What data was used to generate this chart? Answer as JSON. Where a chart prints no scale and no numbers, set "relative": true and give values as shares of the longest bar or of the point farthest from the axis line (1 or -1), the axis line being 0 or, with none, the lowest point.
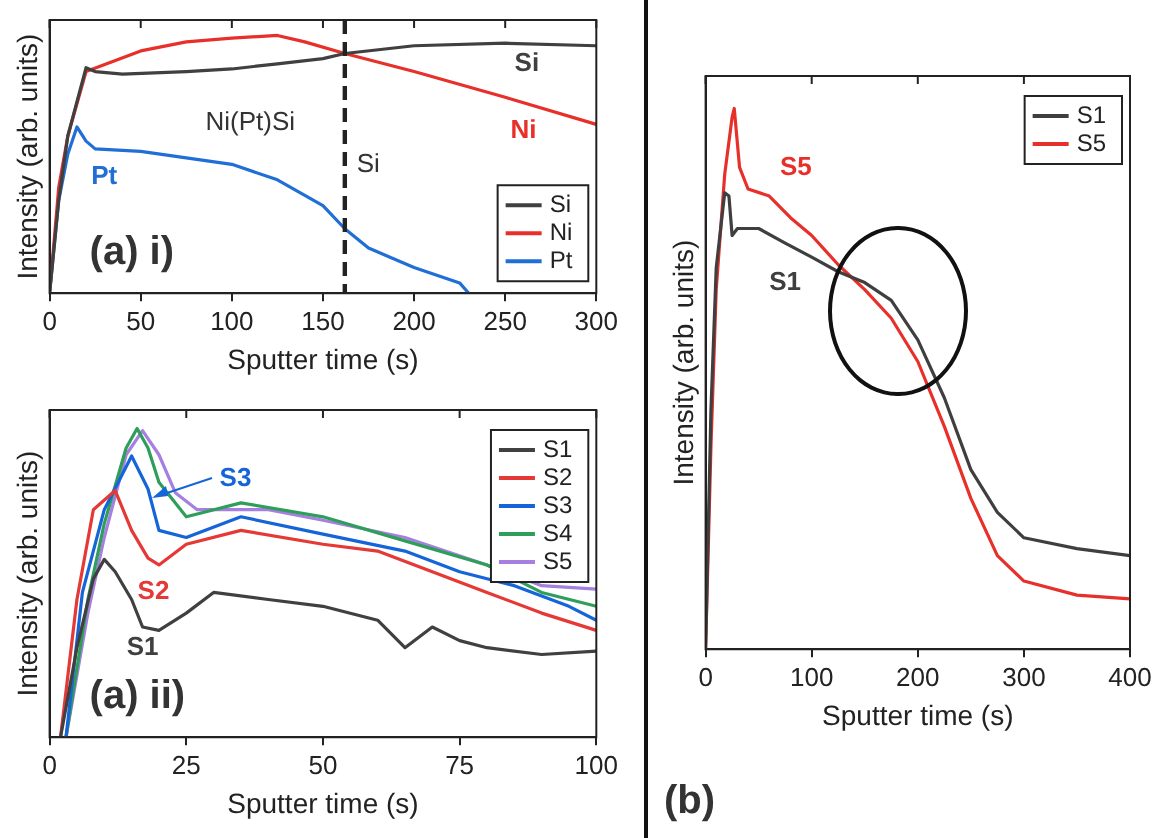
{
  "chart_data": [
    {
      "type": "line",
      "relative": true,
      "xlabel": "Sputter time (s)",
      "ylabel": "Intensity (arb. units)",
      "xlim": [
        0,
        300
      ],
      "xticks": [
        0,
        50,
        100,
        150,
        200,
        250,
        300
      ],
      "tick_labels": "x",
      "legend": "bottom right",
      "marker": "none",
      "series": [
        {
          "name": "Si",
          "color": "#404040",
          "x": [
            0,
            5,
            10,
            20,
            25,
            40,
            75,
            100,
            125,
            150,
            162,
            200,
            250,
            300
          ],
          "values": [
            0,
            0.36,
            0.61,
            0.875,
            0.86,
            0.85,
            0.86,
            0.87,
            0.89,
            0.91,
            0.93,
            0.96,
            0.97,
            0.96
          ]
        },
        {
          "name": "Ni",
          "color": "#e8302a",
          "x": [
            0,
            5,
            10,
            20,
            50,
            75,
            100,
            125,
            140,
            162,
            200,
            250,
            300
          ],
          "values": [
            0,
            0.41,
            0.61,
            0.86,
            0.94,
            0.975,
            0.99,
            1,
            0.975,
            0.93,
            0.86,
            0.76,
            0.655
          ]
        },
        {
          "name": "Pt",
          "color": "#1f6fd6",
          "x": [
            0,
            5,
            10,
            15,
            20,
            25,
            50,
            75,
            100,
            125,
            150,
            162,
            175,
            200,
            225,
            230
          ],
          "values": [
            0,
            0.36,
            0.54,
            0.645,
            0.59,
            0.56,
            0.55,
            0.525,
            0.5,
            0.44,
            0.34,
            0.25,
            0.175,
            0.1,
            0.04,
            0
          ]
        }
      ],
      "ref_lines": [
        {
          "axis": "x",
          "value": 162,
          "color": "#222222",
          "line_style": "dashed"
        }
      ],
      "annotations": [
        "Ni(Pt)Si",
        "Si",
        "Si",
        "Ni",
        "Pt",
        "(a) i)"
      ]
    },
    {
      "type": "line",
      "relative": true,
      "xlabel": "Sputter time (s)",
      "ylabel": "Intensity (arb. units)",
      "xlim": [
        0,
        100
      ],
      "xticks": [
        0,
        25,
        50,
        75,
        100
      ],
      "tick_labels": "x",
      "legend": "top right",
      "marker": "none",
      "series": [
        {
          "name": "S1",
          "color": "#404040",
          "x": [
            2,
            5,
            8,
            10,
            12,
            15,
            17,
            20,
            25,
            30,
            40,
            50,
            60,
            65,
            70,
            75,
            80,
            90,
            100
          ],
          "values": [
            0,
            0.29,
            0.513,
            0.576,
            0.536,
            0.446,
            0.357,
            0.346,
            0.402,
            0.469,
            0.446,
            0.424,
            0.379,
            0.29,
            0.357,
            0.313,
            0.29,
            0.268,
            0.279
          ]
        },
        {
          "name": "S2",
          "color": "#e53935",
          "x": [
            2,
            5,
            8,
            12,
            15,
            18,
            20,
            25,
            35,
            50,
            60,
            70,
            80,
            90,
            100
          ],
          "values": [
            0,
            0.446,
            0.737,
            0.799,
            0.67,
            0.58,
            0.558,
            0.625,
            0.67,
            0.625,
            0.603,
            0.536,
            0.469,
            0.402,
            0.346
          ]
        },
        {
          "name": "S3",
          "color": "#1565d8",
          "x": [
            3,
            6,
            10,
            15,
            18,
            20,
            25,
            35,
            50,
            65,
            75,
            85,
            95,
            100
          ],
          "values": [
            0,
            0.469,
            0.737,
            0.911,
            0.804,
            0.67,
            0.647,
            0.714,
            0.658,
            0.603,
            0.536,
            0.491,
            0.424,
            0.379
          ]
        },
        {
          "name": "S4",
          "color": "#2e9e5a",
          "x": [
            3,
            7,
            10,
            14,
            16,
            18,
            20,
            25,
            35,
            50,
            65,
            80,
            90,
            100
          ],
          "values": [
            0,
            0.446,
            0.692,
            0.937,
            1,
            0.937,
            0.826,
            0.714,
            0.759,
            0.714,
            0.636,
            0.558,
            0.469,
            0.424
          ]
        },
        {
          "name": "S5",
          "color": "#a67fe0",
          "x": [
            3,
            7,
            10,
            14,
            17,
            20,
            23,
            27,
            40,
            50,
            65,
            80,
            90,
            100
          ],
          "values": [
            0,
            0.402,
            0.647,
            0.915,
            0.993,
            0.915,
            0.792,
            0.737,
            0.737,
            0.703,
            0.647,
            0.558,
            0.491,
            0.48
          ]
        }
      ],
      "annotations": [
        "S1",
        "S2",
        "S3",
        "(a) ii)"
      ]
    },
    {
      "type": "line",
      "relative": true,
      "xlabel": "Sputter time (s)",
      "ylabel": "Intensity (arb. units)",
      "xlim": [
        0,
        400
      ],
      "xticks": [
        0,
        100,
        200,
        300,
        400
      ],
      "tick_labels": "x",
      "legend": "top right",
      "marker": "none",
      "series": [
        {
          "name": "S1",
          "color": "#3f3f3f",
          "x": [
            0,
            5,
            10,
            18,
            22,
            25,
            30,
            50,
            75,
            100,
            125,
            150,
            175,
            200,
            225,
            250,
            275,
            300,
            350,
            400
          ],
          "values": [
            0,
            0.44,
            0.705,
            0.844,
            0.838,
            0.765,
            0.778,
            0.778,
            0.751,
            0.725,
            0.698,
            0.678,
            0.645,
            0.572,
            0.465,
            0.332,
            0.253,
            0.206,
            0.186,
            0.173
          ]
        },
        {
          "name": "S5",
          "color": "#e8302a",
          "x": [
            0,
            5,
            10,
            18,
            25,
            27,
            32,
            40,
            60,
            80,
            100,
            125,
            150,
            175,
            200,
            225,
            250,
            275,
            300,
            350,
            400
          ],
          "values": [
            0,
            0.372,
            0.665,
            0.878,
            0.984,
            1,
            0.891,
            0.851,
            0.838,
            0.798,
            0.765,
            0.711,
            0.665,
            0.612,
            0.532,
            0.412,
            0.279,
            0.173,
            0.126,
            0.1,
            0.093
          ]
        }
      ],
      "annotations": [
        "S5",
        "S1",
        "(b)"
      ]
    }
  ]
}
